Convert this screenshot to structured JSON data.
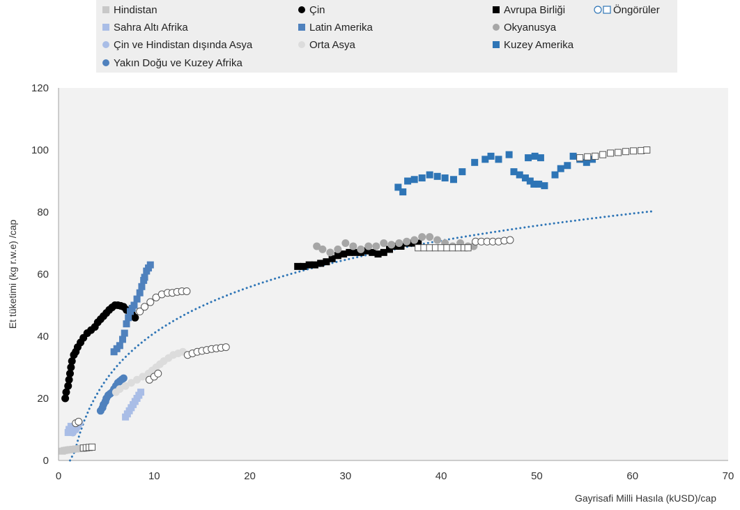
{
  "chart_data": {
    "type": "scatter",
    "xlabel": "Gayrisafi Milli Hasıla (kUSD)/cap",
    "ylabel": "Et tüketimi (kg r.w.e) /cap",
    "xlim": [
      0,
      70
    ],
    "ylim": [
      0,
      120
    ],
    "xticks": [
      "0",
      "10",
      "20",
      "30",
      "40",
      "50",
      "60",
      "70"
    ],
    "yticks": [
      "0",
      "20",
      "40",
      "60",
      "80",
      "100",
      "120"
    ],
    "grid": false,
    "legend_position": "top",
    "series": [
      {
        "name": "Hindistan",
        "marker": "square",
        "color": "#c8c8c8",
        "points": [
          [
            0.4,
            3
          ],
          [
            0.6,
            3.2
          ],
          [
            0.8,
            3.3
          ],
          [
            1,
            3.4
          ],
          [
            1.2,
            3.5
          ],
          [
            1.5,
            3.6
          ],
          [
            1.8,
            3.7
          ],
          [
            2.1,
            3.8
          ],
          [
            2.4,
            3.9
          ],
          [
            2.7,
            4
          ]
        ]
      },
      {
        "name": "Sahra Altı Afrika",
        "marker": "square",
        "color": "#a9bde6",
        "points": [
          [
            1,
            9
          ],
          [
            1.1,
            10
          ],
          [
            1.3,
            11
          ],
          [
            1.5,
            10.5
          ],
          [
            1.7,
            10
          ],
          [
            1.9,
            11
          ],
          [
            7,
            14
          ],
          [
            7.2,
            15
          ],
          [
            7.4,
            16
          ],
          [
            7.6,
            17
          ],
          [
            7.8,
            18
          ],
          [
            8,
            19
          ],
          [
            8.2,
            20
          ],
          [
            8.4,
            21
          ],
          [
            8.6,
            22
          ]
        ]
      },
      {
        "name": "Çin ve Hindistan dışında Asya",
        "marker": "circle",
        "color": "#a9bde6",
        "points": [
          [
            1.5,
            9
          ],
          [
            1.8,
            10
          ],
          [
            2,
            11
          ],
          [
            2.2,
            12
          ]
        ]
      },
      {
        "name": "Yakın Doğu ve Kuzey Afrika",
        "marker": "circle",
        "color": "#4f81bd",
        "points": [
          [
            4.4,
            16
          ],
          [
            4.6,
            17
          ],
          [
            4.7,
            18
          ],
          [
            4.9,
            19
          ],
          [
            5,
            20
          ],
          [
            5.2,
            21
          ],
          [
            5.4,
            21.5
          ],
          [
            5.6,
            22
          ],
          [
            5.8,
            23
          ],
          [
            6,
            24
          ],
          [
            6.2,
            25
          ],
          [
            6.4,
            25.5
          ],
          [
            6.6,
            26
          ],
          [
            6.8,
            26.5
          ]
        ]
      },
      {
        "name": "Çin",
        "marker": "circle",
        "color": "#000000",
        "points": [
          [
            0.7,
            20
          ],
          [
            0.8,
            22
          ],
          [
            1,
            24
          ],
          [
            1.1,
            26
          ],
          [
            1.2,
            28
          ],
          [
            1.3,
            30
          ],
          [
            1.4,
            32
          ],
          [
            1.6,
            34
          ],
          [
            1.8,
            35
          ],
          [
            2,
            36.5
          ],
          [
            2.3,
            38
          ],
          [
            2.6,
            39.5
          ],
          [
            3,
            41
          ],
          [
            3.4,
            42
          ],
          [
            3.8,
            43
          ],
          [
            4.1,
            44.5
          ],
          [
            4.4,
            45.5
          ],
          [
            4.7,
            46.5
          ],
          [
            5,
            47.5
          ],
          [
            5.3,
            48.5
          ],
          [
            5.6,
            49.3
          ],
          [
            5.9,
            50
          ],
          [
            6.2,
            50
          ],
          [
            6.5,
            49.8
          ],
          [
            6.8,
            49.5
          ],
          [
            7.1,
            48.5
          ],
          [
            7.4,
            48
          ],
          [
            7.7,
            47
          ],
          [
            8,
            46
          ]
        ]
      },
      {
        "name": "Latin Amerika",
        "marker": "square",
        "color": "#4f81bd",
        "points": [
          [
            5.8,
            35
          ],
          [
            6.1,
            36
          ],
          [
            6.4,
            37
          ],
          [
            6.7,
            39
          ],
          [
            6.9,
            41
          ],
          [
            7.1,
            44
          ],
          [
            7.3,
            46
          ],
          [
            7.5,
            48
          ],
          [
            7.7,
            49
          ],
          [
            7.9,
            50
          ],
          [
            8.2,
            52
          ],
          [
            8.5,
            54
          ],
          [
            8.7,
            56
          ],
          [
            8.9,
            58
          ],
          [
            9,
            59
          ],
          [
            9.2,
            61
          ],
          [
            9.4,
            62
          ],
          [
            9.6,
            63
          ]
        ]
      },
      {
        "name": "Orta Asya",
        "marker": "circle",
        "color": "#dcdcdc",
        "points": [
          [
            6,
            22
          ],
          [
            6.4,
            23
          ],
          [
            7,
            24
          ],
          [
            7.6,
            25
          ],
          [
            8.2,
            26
          ],
          [
            8.8,
            27
          ],
          [
            9.4,
            28
          ],
          [
            9.8,
            29
          ],
          [
            10.2,
            30
          ],
          [
            10.6,
            31
          ],
          [
            11,
            32
          ],
          [
            11.5,
            33
          ],
          [
            12,
            34
          ],
          [
            12.5,
            34.5
          ],
          [
            13,
            35
          ]
        ]
      },
      {
        "name": "Avrupa Birliği",
        "marker": "square",
        "color": "#000000",
        "points": [
          [
            25,
            62.5
          ],
          [
            25.6,
            62.5
          ],
          [
            26.2,
            63
          ],
          [
            26.8,
            63
          ],
          [
            27.4,
            63.5
          ],
          [
            28,
            64
          ],
          [
            28.6,
            65
          ],
          [
            29.2,
            66
          ],
          [
            29.8,
            66.5
          ],
          [
            30.4,
            67
          ],
          [
            31,
            67
          ],
          [
            31.6,
            67
          ],
          [
            32.2,
            67.5
          ],
          [
            32.8,
            67
          ],
          [
            33.4,
            66.5
          ],
          [
            34,
            67
          ],
          [
            34.6,
            68
          ],
          [
            35.2,
            69
          ],
          [
            35.8,
            69
          ],
          [
            36.4,
            70
          ],
          [
            37,
            70
          ],
          [
            37.6,
            70
          ]
        ]
      },
      {
        "name": "Okyanusya",
        "marker": "circle",
        "color": "#a6a6a6",
        "points": [
          [
            27,
            69
          ],
          [
            27.6,
            68
          ],
          [
            28.4,
            67
          ],
          [
            29.2,
            68
          ],
          [
            30,
            70
          ],
          [
            30.8,
            69
          ],
          [
            31.6,
            68
          ],
          [
            32.4,
            69
          ],
          [
            33.2,
            69
          ],
          [
            34,
            70
          ],
          [
            34.8,
            69.5
          ],
          [
            35.6,
            70
          ],
          [
            36.4,
            70.5
          ],
          [
            37.2,
            71
          ],
          [
            38,
            72
          ],
          [
            38.8,
            72
          ],
          [
            39.6,
            71
          ],
          [
            40.4,
            70
          ],
          [
            41.2,
            69
          ],
          [
            42,
            70
          ],
          [
            42.8,
            69
          ],
          [
            43.4,
            69
          ]
        ]
      },
      {
        "name": "Kuzey Amerika",
        "marker": "square",
        "color": "#2e75b6",
        "points": [
          [
            35.5,
            88
          ],
          [
            36,
            86.5
          ],
          [
            36.5,
            90
          ],
          [
            37.2,
            90.5
          ],
          [
            38,
            91
          ],
          [
            38.8,
            92
          ],
          [
            39.6,
            91.5
          ],
          [
            40.4,
            91
          ],
          [
            41.3,
            90.5
          ],
          [
            42.2,
            93
          ],
          [
            43.5,
            96
          ],
          [
            44.6,
            97
          ],
          [
            45.2,
            98
          ],
          [
            46,
            97
          ],
          [
            47.1,
            98.5
          ],
          [
            47.6,
            93
          ],
          [
            48.2,
            92
          ],
          [
            48.8,
            91
          ],
          [
            49.3,
            90
          ],
          [
            49.7,
            89
          ],
          [
            50.2,
            89
          ],
          [
            50.8,
            88.5
          ],
          [
            51.9,
            92
          ],
          [
            52.5,
            94
          ],
          [
            53.2,
            95
          ],
          [
            53.8,
            98
          ],
          [
            54.5,
            97
          ],
          [
            55.2,
            96
          ],
          [
            55.8,
            97
          ],
          [
            49.1,
            97.5
          ],
          [
            49.8,
            98
          ],
          [
            50.4,
            97.5
          ]
        ]
      }
    ],
    "projections": [
      {
        "series": "Hindistan",
        "marker": "square",
        "points": [
          [
            2.6,
            4
          ],
          [
            2.9,
            4.1
          ],
          [
            3.2,
            4.2
          ],
          [
            3.5,
            4.3
          ]
        ]
      },
      {
        "series": "Çin ve Hindistan dışında Asya",
        "marker": "circle",
        "points": [
          [
            1.8,
            12
          ],
          [
            2.1,
            12.5
          ]
        ]
      },
      {
        "series": "Çin",
        "marker": "circle",
        "points": [
          [
            8.5,
            48
          ],
          [
            9,
            49.5
          ],
          [
            9.6,
            51
          ],
          [
            10.2,
            52.5
          ],
          [
            10.8,
            53.5
          ],
          [
            11.4,
            54
          ],
          [
            11.9,
            54
          ],
          [
            12.4,
            54.3
          ],
          [
            12.9,
            54.5
          ],
          [
            13.4,
            54.5
          ]
        ]
      },
      {
        "series": "Orta Asya",
        "marker": "circle",
        "points": [
          [
            9.5,
            26
          ],
          [
            10,
            27
          ],
          [
            10.4,
            28
          ]
        ]
      },
      {
        "series": "Orta Asya",
        "marker": "circle",
        "points": [
          [
            13.5,
            34
          ],
          [
            14,
            34.5
          ],
          [
            14.5,
            35
          ],
          [
            15,
            35.3
          ],
          [
            15.5,
            35.6
          ],
          [
            16,
            35.9
          ],
          [
            16.5,
            36.1
          ],
          [
            17,
            36.3
          ],
          [
            17.5,
            36.5
          ]
        ]
      },
      {
        "series": "Avrupa Birliği",
        "marker": "square",
        "points": [
          [
            37.6,
            68.5
          ],
          [
            38.2,
            68.5
          ],
          [
            38.8,
            68.5
          ],
          [
            39.4,
            68.5
          ],
          [
            40,
            68.5
          ],
          [
            40.6,
            68.5
          ],
          [
            41.2,
            68.5
          ],
          [
            41.8,
            68.5
          ],
          [
            42.4,
            68.5
          ],
          [
            42.8,
            68.5
          ]
        ]
      },
      {
        "series": "Okyanusya",
        "marker": "circle",
        "points": [
          [
            43.6,
            70.5
          ],
          [
            44.2,
            70.5
          ],
          [
            44.8,
            70.5
          ],
          [
            45.4,
            70.5
          ],
          [
            46,
            70.5
          ],
          [
            46.6,
            70.8
          ],
          [
            47.2,
            71
          ]
        ]
      },
      {
        "series": "Kuzey Amerika",
        "marker": "square",
        "points": [
          [
            54.5,
            97.5
          ],
          [
            55.3,
            97.8
          ],
          [
            56.1,
            98
          ],
          [
            56.9,
            98.5
          ],
          [
            57.7,
            99
          ],
          [
            58.5,
            99.2
          ],
          [
            59.3,
            99.5
          ],
          [
            60.1,
            99.7
          ],
          [
            60.9,
            99.8
          ],
          [
            61.5,
            100
          ]
        ]
      }
    ],
    "trendline": {
      "type": "logarithmic",
      "style": "dotted",
      "color": "#2e75b6",
      "x_start": 1.2,
      "x_end": 62,
      "a": 21.5,
      "b": -8.5
    }
  },
  "legend": {
    "items": [
      {
        "label": "Hindistan",
        "marker": "square",
        "color": "#c8c8c8"
      },
      {
        "label": "Çin",
        "marker": "circle",
        "color": "#000000"
      },
      {
        "label": "Avrupa Birliği",
        "marker": "square",
        "color": "#000000"
      },
      {
        "label": "Öngörüler",
        "marker": "projection-pair",
        "color": "#2e75b6"
      },
      {
        "label": "Sahra Altı Afrika",
        "marker": "square",
        "color": "#a9bde6"
      },
      {
        "label": "Latin Amerika",
        "marker": "square",
        "color": "#4f81bd"
      },
      {
        "label": "Okyanusya",
        "marker": "circle",
        "color": "#a6a6a6"
      },
      {
        "label": "Çin ve Hindistan dışında Asya",
        "marker": "circle",
        "color": "#a9bde6"
      },
      {
        "label": "Orta Asya",
        "marker": "circle",
        "color": "#dcdcdc"
      },
      {
        "label": "Kuzey Amerika",
        "marker": "square",
        "color": "#2e75b6"
      },
      {
        "label": "Yakın Doğu ve Kuzey Afrika",
        "marker": "circle",
        "color": "#4f81bd"
      }
    ]
  }
}
